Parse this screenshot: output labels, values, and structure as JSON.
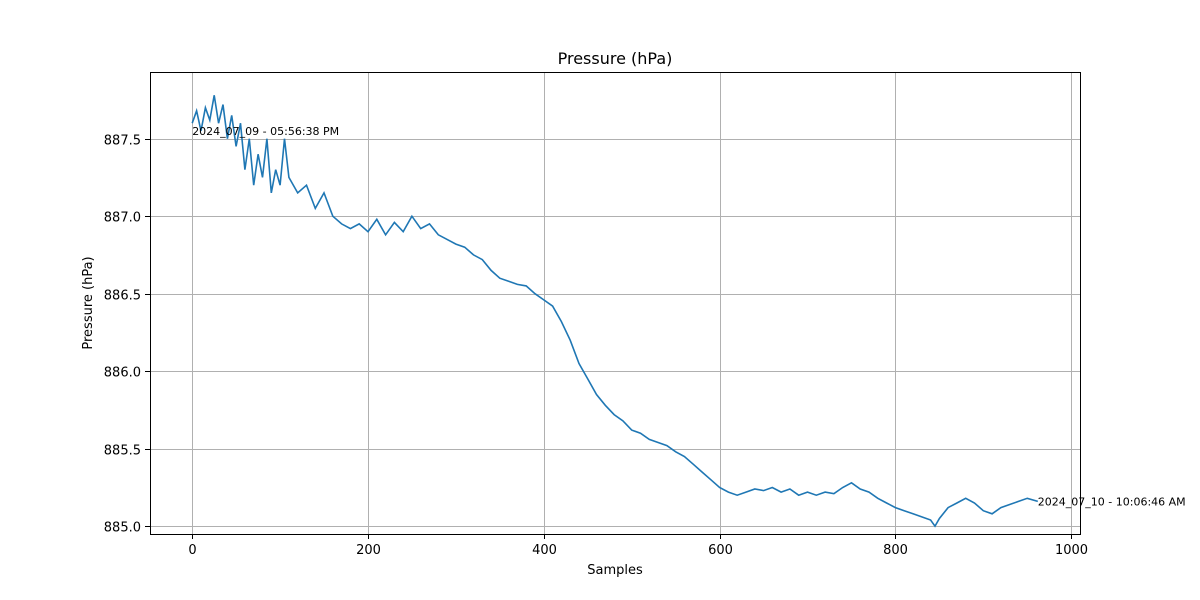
{
  "chart_data": {
    "type": "line",
    "title": "Pressure (hPa)",
    "xlabel": "Samples",
    "ylabel": "Pressure (hPa)",
    "xlim": [
      -48,
      1010
    ],
    "ylim": [
      884.95,
      887.93
    ],
    "xticks": [
      0,
      200,
      400,
      600,
      800,
      1000
    ],
    "yticks": [
      885.0,
      885.5,
      886.0,
      886.5,
      887.0,
      887.5
    ],
    "xtick_labels": [
      "0",
      "200",
      "400",
      "600",
      "800",
      "1000"
    ],
    "ytick_labels": [
      "885.0",
      "885.5",
      "886.0",
      "886.5",
      "887.0",
      "887.5"
    ],
    "grid": true,
    "line_color": "#1f77b4",
    "annotations": [
      {
        "text": "2024_07_09 - 05:56:38 PM",
        "x": 0,
        "y": 887.55
      },
      {
        "text": "2024_07_10 - 10:06:46 AM",
        "x": 962,
        "y": 885.16
      }
    ],
    "series": [
      {
        "x": [
          0,
          5,
          10,
          15,
          20,
          25,
          30,
          35,
          40,
          45,
          50,
          55,
          60,
          65,
          70,
          75,
          80,
          85,
          90,
          95,
          100,
          105,
          110,
          120,
          130,
          140,
          150,
          160,
          170,
          180,
          190,
          200,
          210,
          220,
          230,
          240,
          250,
          260,
          270,
          280,
          290,
          300,
          310,
          320,
          330,
          340,
          350,
          360,
          370,
          380,
          390,
          400,
          410,
          420,
          430,
          440,
          450,
          460,
          470,
          480,
          490,
          500,
          510,
          520,
          530,
          540,
          550,
          560,
          570,
          580,
          590,
          600,
          610,
          620,
          630,
          640,
          650,
          660,
          670,
          680,
          690,
          700,
          710,
          720,
          730,
          740,
          750,
          760,
          770,
          780,
          790,
          800,
          810,
          820,
          830,
          840,
          845,
          850,
          860,
          870,
          880,
          890,
          900,
          910,
          920,
          930,
          940,
          950,
          962
        ],
        "y": [
          887.6,
          887.68,
          887.55,
          887.7,
          887.62,
          887.78,
          887.6,
          887.72,
          887.5,
          887.65,
          887.45,
          887.6,
          887.3,
          887.5,
          887.2,
          887.4,
          887.25,
          887.5,
          887.15,
          887.3,
          887.2,
          887.5,
          887.25,
          887.15,
          887.2,
          887.05,
          887.15,
          887.0,
          886.95,
          886.92,
          886.95,
          886.9,
          886.98,
          886.88,
          886.96,
          886.9,
          887.0,
          886.92,
          886.95,
          886.88,
          886.85,
          886.82,
          886.8,
          886.75,
          886.72,
          886.65,
          886.6,
          886.58,
          886.56,
          886.55,
          886.5,
          886.46,
          886.42,
          886.32,
          886.2,
          886.05,
          885.95,
          885.85,
          885.78,
          885.72,
          885.68,
          885.62,
          885.6,
          885.56,
          885.54,
          885.52,
          885.48,
          885.45,
          885.4,
          885.35,
          885.3,
          885.25,
          885.22,
          885.2,
          885.22,
          885.24,
          885.23,
          885.25,
          885.22,
          885.24,
          885.2,
          885.22,
          885.2,
          885.22,
          885.21,
          885.25,
          885.28,
          885.24,
          885.22,
          885.18,
          885.15,
          885.12,
          885.1,
          885.08,
          885.06,
          885.04,
          885.0,
          885.05,
          885.12,
          885.15,
          885.18,
          885.15,
          885.1,
          885.08,
          885.12,
          885.14,
          885.16,
          885.18,
          885.16
        ]
      }
    ]
  }
}
